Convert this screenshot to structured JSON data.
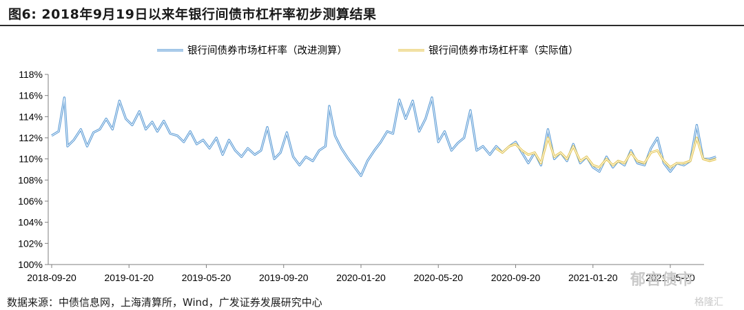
{
  "header": {
    "title": "图6:  2018年9月19日以来年银行间债市杠杆率初步测算结果"
  },
  "footer": {
    "source": "数据来源：中债信息网，上海清算所，Wind，广发证券发展研究中心"
  },
  "watermark": {
    "text": "郁言债市",
    "subtext": "格隆汇"
  },
  "colors": {
    "series1": "#5b9bd5",
    "series2": "#e6c651",
    "axis": "#7f7f7f"
  },
  "chart_data": {
    "type": "line",
    "x_ticks": [
      "2018-09-20",
      "2019-01-20",
      "2019-05-20",
      "2019-09-20",
      "2020-01-20",
      "2020-05-20",
      "2020-09-20",
      "2021-01-20",
      "2021-05-20"
    ],
    "ylim": [
      100,
      118
    ],
    "y_ticks": [
      "100%",
      "102%",
      "104%",
      "106%",
      "108%",
      "110%",
      "112%",
      "114%",
      "116%",
      "118%"
    ],
    "legend_position": "top-center",
    "series": [
      {
        "name": "银行间债券市场杠杆率（改进测算）",
        "points": [
          [
            "2018-09-20",
            112.2
          ],
          [
            "2018-10-01",
            112.6
          ],
          [
            "2018-10-10",
            115.8
          ],
          [
            "2018-10-15",
            111.2
          ],
          [
            "2018-10-25",
            111.8
          ],
          [
            "2018-11-05",
            112.8
          ],
          [
            "2018-11-15",
            111.2
          ],
          [
            "2018-11-25",
            112.5
          ],
          [
            "2018-12-05",
            112.8
          ],
          [
            "2018-12-15",
            113.8
          ],
          [
            "2018-12-25",
            112.8
          ],
          [
            "2019-01-05",
            115.5
          ],
          [
            "2019-01-15",
            113.8
          ],
          [
            "2019-01-25",
            113.2
          ],
          [
            "2019-02-05",
            114.5
          ],
          [
            "2019-02-15",
            112.8
          ],
          [
            "2019-02-25",
            113.5
          ],
          [
            "2019-03-05",
            112.6
          ],
          [
            "2019-03-15",
            113.6
          ],
          [
            "2019-03-25",
            112.4
          ],
          [
            "2019-04-05",
            112.2
          ],
          [
            "2019-04-15",
            111.6
          ],
          [
            "2019-04-25",
            112.6
          ],
          [
            "2019-05-05",
            111.4
          ],
          [
            "2019-05-15",
            111.8
          ],
          [
            "2019-05-25",
            111.0
          ],
          [
            "2019-06-05",
            112.0
          ],
          [
            "2019-06-15",
            110.4
          ],
          [
            "2019-06-25",
            111.8
          ],
          [
            "2019-07-05",
            110.8
          ],
          [
            "2019-07-15",
            110.2
          ],
          [
            "2019-07-25",
            111.0
          ],
          [
            "2019-08-05",
            110.4
          ],
          [
            "2019-08-15",
            110.8
          ],
          [
            "2019-08-25",
            113.0
          ],
          [
            "2019-09-05",
            110.0
          ],
          [
            "2019-09-15",
            110.6
          ],
          [
            "2019-09-25",
            112.5
          ],
          [
            "2019-10-05",
            110.2
          ],
          [
            "2019-10-15",
            109.4
          ],
          [
            "2019-10-25",
            110.2
          ],
          [
            "2019-11-05",
            109.8
          ],
          [
            "2019-11-15",
            110.8
          ],
          [
            "2019-11-25",
            111.2
          ],
          [
            "2019-12-01",
            115.0
          ],
          [
            "2019-12-10",
            112.2
          ],
          [
            "2019-12-20",
            111.0
          ],
          [
            "2019-12-31",
            110.0
          ],
          [
            "2020-01-10",
            109.2
          ],
          [
            "2020-01-20",
            108.4
          ],
          [
            "2020-01-30",
            109.8
          ],
          [
            "2020-02-10",
            110.8
          ],
          [
            "2020-02-20",
            111.6
          ],
          [
            "2020-03-01",
            112.6
          ],
          [
            "2020-03-10",
            112.4
          ],
          [
            "2020-03-20",
            115.6
          ],
          [
            "2020-03-30",
            113.8
          ],
          [
            "2020-04-10",
            115.5
          ],
          [
            "2020-04-20",
            112.6
          ],
          [
            "2020-04-30",
            113.8
          ],
          [
            "2020-05-10",
            115.8
          ],
          [
            "2020-05-20",
            111.6
          ],
          [
            "2020-05-30",
            112.6
          ],
          [
            "2020-06-10",
            110.8
          ],
          [
            "2020-06-20",
            111.5
          ],
          [
            "2020-06-30",
            112.0
          ],
          [
            "2020-07-10",
            114.6
          ],
          [
            "2020-07-20",
            110.8
          ],
          [
            "2020-07-30",
            111.2
          ],
          [
            "2020-08-10",
            110.4
          ],
          [
            "2020-08-20",
            111.2
          ],
          [
            "2020-08-30",
            110.6
          ],
          [
            "2020-09-10",
            111.2
          ],
          [
            "2020-09-20",
            111.6
          ],
          [
            "2020-09-30",
            110.6
          ],
          [
            "2020-10-10",
            109.6
          ],
          [
            "2020-10-20",
            110.6
          ],
          [
            "2020-10-30",
            109.4
          ],
          [
            "2020-11-10",
            112.8
          ],
          [
            "2020-11-20",
            110.0
          ],
          [
            "2020-11-30",
            110.6
          ],
          [
            "2020-12-10",
            109.8
          ],
          [
            "2020-12-20",
            111.4
          ],
          [
            "2020-12-31",
            109.6
          ],
          [
            "2021-01-10",
            110.2
          ],
          [
            "2021-01-20",
            109.2
          ],
          [
            "2021-01-30",
            108.8
          ],
          [
            "2021-02-10",
            110.2
          ],
          [
            "2021-02-20",
            109.2
          ],
          [
            "2021-02-28",
            109.8
          ],
          [
            "2021-03-10",
            109.4
          ],
          [
            "2021-03-20",
            110.8
          ],
          [
            "2021-03-30",
            109.6
          ],
          [
            "2021-04-10",
            109.4
          ],
          [
            "2021-04-20",
            111.0
          ],
          [
            "2021-04-30",
            112.0
          ],
          [
            "2021-05-10",
            109.6
          ],
          [
            "2021-05-20",
            108.8
          ],
          [
            "2021-05-30",
            109.6
          ],
          [
            "2021-06-10",
            109.4
          ],
          [
            "2021-06-20",
            109.8
          ],
          [
            "2021-06-30",
            113.2
          ],
          [
            "2021-07-10",
            110.0
          ],
          [
            "2021-07-20",
            110.0
          ],
          [
            "2021-07-30",
            110.2
          ]
        ]
      },
      {
        "name": "银行间债券市场杠杆率（实际值）",
        "points": [
          [
            "2020-08-20",
            111.0
          ],
          [
            "2020-08-30",
            110.6
          ],
          [
            "2020-09-10",
            111.2
          ],
          [
            "2020-09-20",
            111.4
          ],
          [
            "2020-09-30",
            110.8
          ],
          [
            "2020-10-10",
            110.4
          ],
          [
            "2020-10-20",
            110.6
          ],
          [
            "2020-10-30",
            109.6
          ],
          [
            "2020-11-10",
            112.0
          ],
          [
            "2020-11-20",
            110.2
          ],
          [
            "2020-11-30",
            110.6
          ],
          [
            "2020-12-10",
            110.0
          ],
          [
            "2020-12-20",
            111.2
          ],
          [
            "2020-12-31",
            109.8
          ],
          [
            "2021-01-10",
            110.2
          ],
          [
            "2021-01-20",
            109.4
          ],
          [
            "2021-01-30",
            109.2
          ],
          [
            "2021-02-10",
            110.0
          ],
          [
            "2021-02-20",
            109.4
          ],
          [
            "2021-02-28",
            109.8
          ],
          [
            "2021-03-10",
            109.6
          ],
          [
            "2021-03-20",
            110.6
          ],
          [
            "2021-03-30",
            109.8
          ],
          [
            "2021-04-10",
            109.6
          ],
          [
            "2021-04-20",
            110.6
          ],
          [
            "2021-04-30",
            110.8
          ],
          [
            "2021-05-10",
            109.8
          ],
          [
            "2021-05-20",
            109.2
          ],
          [
            "2021-05-30",
            109.6
          ],
          [
            "2021-06-10",
            109.6
          ],
          [
            "2021-06-20",
            109.8
          ],
          [
            "2021-06-30",
            112.0
          ],
          [
            "2021-07-10",
            110.0
          ],
          [
            "2021-07-20",
            109.8
          ],
          [
            "2021-07-30",
            110.0
          ]
        ]
      }
    ]
  }
}
